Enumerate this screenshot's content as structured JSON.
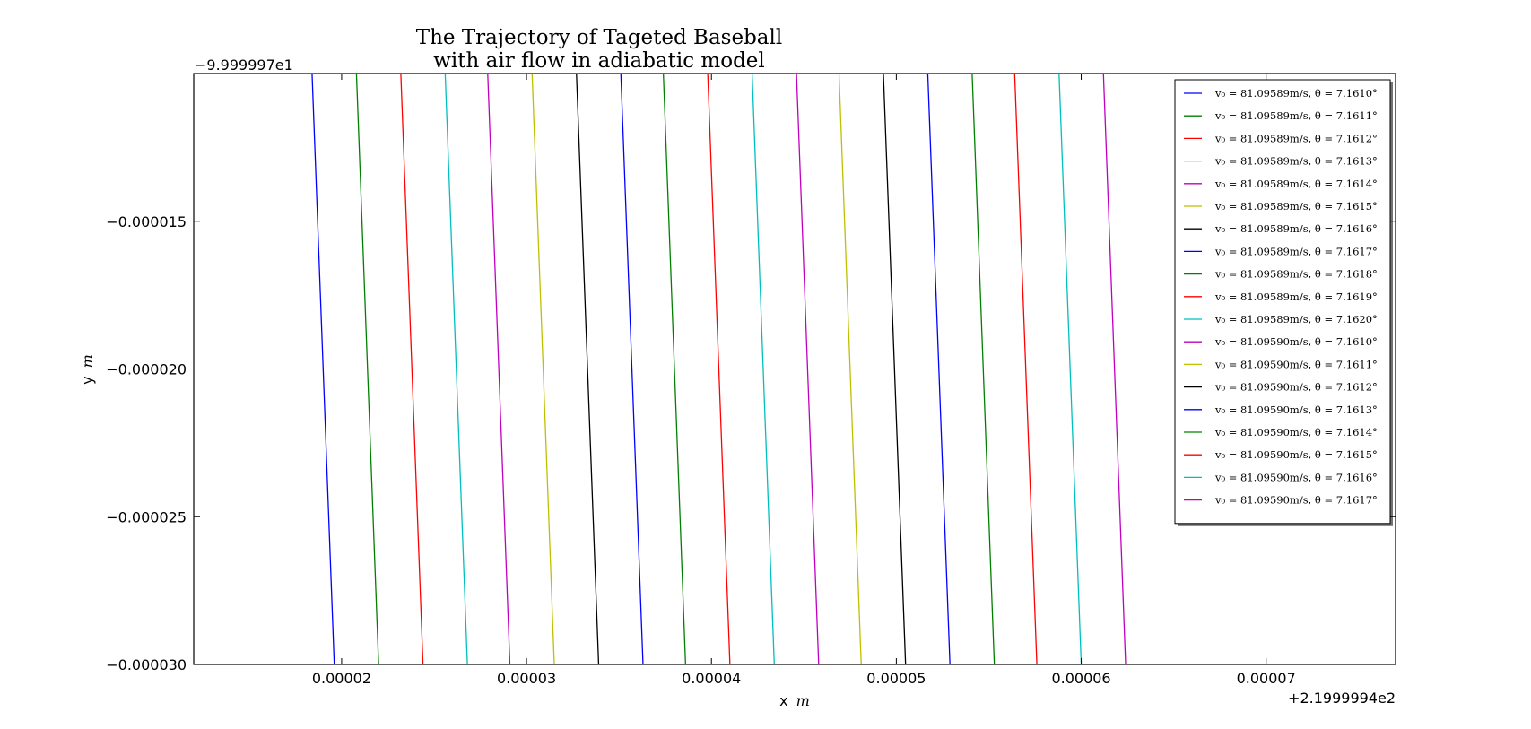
{
  "chart_data": {
    "type": "line",
    "title": [
      "The Trajectory of Tageted Baseball",
      "with air flow in adiabatic model"
    ],
    "xlabel": "x",
    "xlabel_unit": "m",
    "ylabel": "y",
    "ylabel_unit": "m",
    "x_offset_label": "+2.1999994e2",
    "y_offset_label": "−9.999997e1",
    "xlim": [
      1.2e-05,
      7.7e-05
    ],
    "ylim": [
      -3e-05,
      -1e-05
    ],
    "x_ticks": [
      2e-05,
      3e-05,
      4e-05,
      5e-05,
      6e-05,
      7e-05
    ],
    "x_tick_labels": [
      "0.00002",
      "0.00003",
      "0.00004",
      "0.00005",
      "0.00006",
      "0.00007"
    ],
    "y_ticks": [
      -1.5e-05,
      -2e-05,
      -2.5e-05,
      -3e-05
    ],
    "y_tick_labels": [
      "−0.000015",
      "−0.000020",
      "−0.000025",
      "−0.000030"
    ],
    "grid": false,
    "legend_position": "top-right",
    "series": [
      {
        "name": "v₀ = 81.09589m/s, θ = 7.1610°",
        "color": "#0000ff",
        "x": [
          1.84e-05,
          1.96e-05
        ],
        "y": [
          -1e-05,
          -3e-05
        ]
      },
      {
        "name": "v₀ = 81.09589m/s, θ = 7.1611°",
        "color": "#008000",
        "x": [
          2.08e-05,
          2.2e-05
        ],
        "y": [
          -1e-05,
          -3e-05
        ]
      },
      {
        "name": "v₀ = 81.09589m/s, θ = 7.1612°",
        "color": "#ff0000",
        "x": [
          2.32e-05,
          2.44e-05
        ],
        "y": [
          -1e-05,
          -3e-05
        ]
      },
      {
        "name": "v₀ = 81.09589m/s, θ = 7.1613°",
        "color": "#00bfbf",
        "x": [
          2.56e-05,
          2.68e-05
        ],
        "y": [
          -1e-05,
          -3e-05
        ]
      },
      {
        "name": "v₀ = 81.09589m/s, θ = 7.1614°",
        "color": "#bf00bf",
        "x": [
          2.79e-05,
          2.91e-05
        ],
        "y": [
          -1e-05,
          -3e-05
        ]
      },
      {
        "name": "v₀ = 81.09589m/s, θ = 7.1615°",
        "color": "#bfbf00",
        "x": [
          3.03e-05,
          3.15e-05
        ],
        "y": [
          -1e-05,
          -3e-05
        ]
      },
      {
        "name": "v₀ = 81.09589m/s, θ = 7.1616°",
        "color": "#000000",
        "x": [
          3.27e-05,
          3.39e-05
        ],
        "y": [
          -1e-05,
          -3e-05
        ]
      },
      {
        "name": "v₀ = 81.09589m/s, θ = 7.1617°",
        "color": "#0000ff",
        "x": [
          3.51e-05,
          3.63e-05
        ],
        "y": [
          -1e-05,
          -3e-05
        ]
      },
      {
        "name": "v₀ = 81.09589m/s, θ = 7.1618°",
        "color": "#008000",
        "x": [
          3.74e-05,
          3.86e-05
        ],
        "y": [
          -1e-05,
          -3e-05
        ]
      },
      {
        "name": "v₀ = 81.09589m/s, θ = 7.1619°",
        "color": "#ff0000",
        "x": [
          3.98e-05,
          4.1e-05
        ],
        "y": [
          -1e-05,
          -3e-05
        ]
      },
      {
        "name": "v₀ = 81.09589m/s, θ = 7.1620°",
        "color": "#00bfbf",
        "x": [
          4.22e-05,
          4.34e-05
        ],
        "y": [
          -1e-05,
          -3e-05
        ]
      },
      {
        "name": "v₀ = 81.09590m/s, θ = 7.1610°",
        "color": "#bf00bf",
        "x": [
          4.46e-05,
          4.58e-05
        ],
        "y": [
          -1e-05,
          -3e-05
        ]
      },
      {
        "name": "v₀ = 81.09590m/s, θ = 7.1611°",
        "color": "#bfbf00",
        "x": [
          4.69e-05,
          4.81e-05
        ],
        "y": [
          -1e-05,
          -3e-05
        ]
      },
      {
        "name": "v₀ = 81.09590m/s, θ = 7.1612°",
        "color": "#000000",
        "x": [
          4.93e-05,
          5.05e-05
        ],
        "y": [
          -1e-05,
          -3e-05
        ]
      },
      {
        "name": "v₀ = 81.09590m/s, θ = 7.1613°",
        "color": "#0000ff",
        "x": [
          5.17e-05,
          5.29e-05
        ],
        "y": [
          -1e-05,
          -3e-05
        ]
      },
      {
        "name": "v₀ = 81.09590m/s, θ = 7.1614°",
        "color": "#008000",
        "x": [
          5.41e-05,
          5.53e-05
        ],
        "y": [
          -1e-05,
          -3e-05
        ]
      },
      {
        "name": "v₀ = 81.09590m/s, θ = 7.1615°",
        "color": "#ff0000",
        "x": [
          5.64e-05,
          5.76e-05
        ],
        "y": [
          -1e-05,
          -3e-05
        ]
      },
      {
        "name": "v₀ = 81.09590m/s, θ = 7.1616°",
        "color": "#00bfbf",
        "x": [
          5.88e-05,
          6e-05
        ],
        "y": [
          -1e-05,
          -3e-05
        ]
      },
      {
        "name": "v₀ = 81.09590m/s, θ = 7.1617°",
        "color": "#bf00bf",
        "x": [
          6.12e-05,
          6.24e-05
        ],
        "y": [
          -1e-05,
          -3e-05
        ]
      }
    ]
  }
}
